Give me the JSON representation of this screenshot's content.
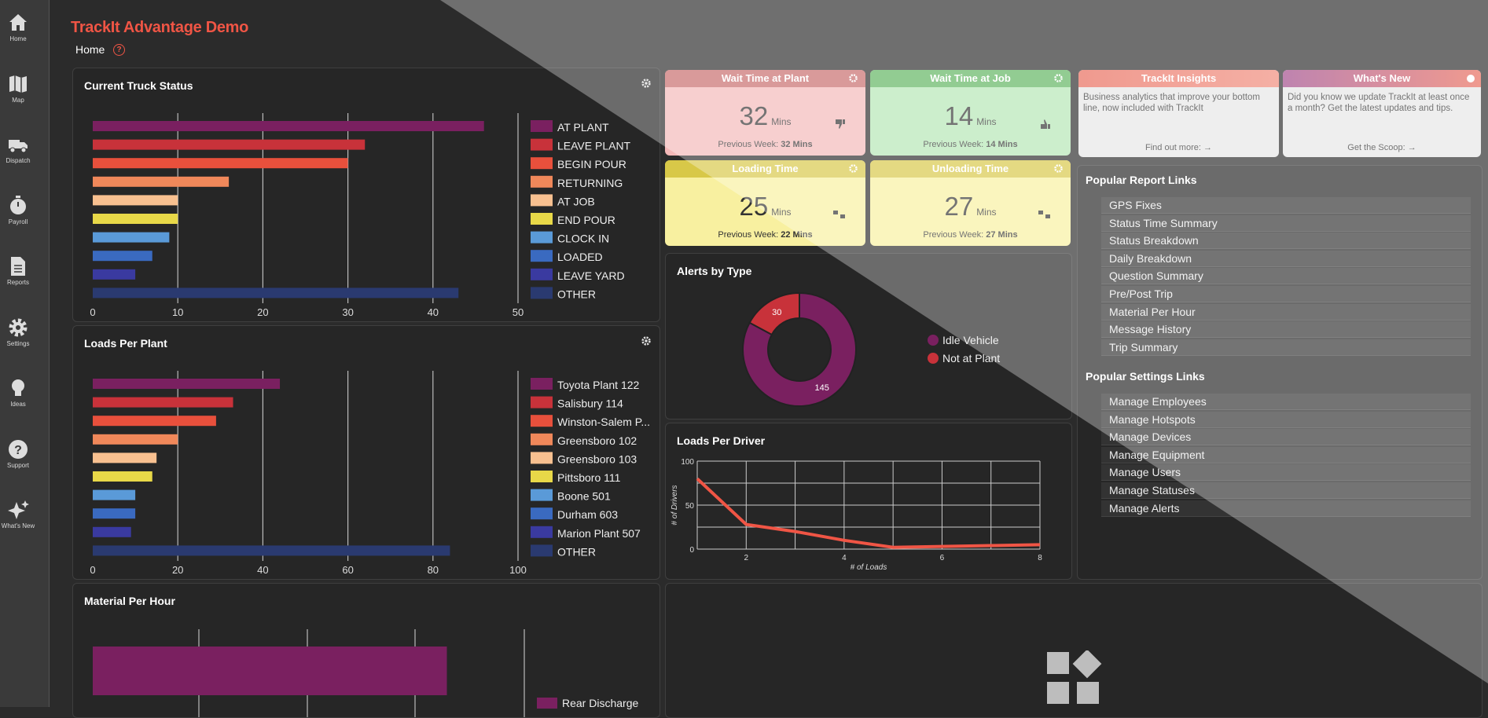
{
  "app": {
    "title": "TrackIt Advantage Demo",
    "breadcrumb": "Home",
    "help_glyph": "?"
  },
  "sidebar": {
    "items": [
      {
        "label": "Home",
        "icon": "home-icon"
      },
      {
        "label": "Map",
        "icon": "map-icon"
      },
      {
        "label": "Dispatch",
        "icon": "truck-icon"
      },
      {
        "label": "Payroll",
        "icon": "stopwatch-icon"
      },
      {
        "label": "Reports",
        "icon": "document-icon"
      },
      {
        "label": "Settings",
        "icon": "gear-icon"
      },
      {
        "label": "Ideas",
        "icon": "lightbulb-icon"
      },
      {
        "label": "Support",
        "icon": "question-icon"
      },
      {
        "label": "What's New",
        "icon": "sparkle-icon"
      }
    ]
  },
  "panels": {
    "truck_status": {
      "title": "Current Truck Status"
    },
    "loads_per_plant": {
      "title": "Loads Per Plant"
    },
    "material_per_hour": {
      "title": "Material Per Hour"
    },
    "alerts_by_type": {
      "title": "Alerts by Type"
    },
    "loads_per_driver": {
      "title": "Loads Per Driver"
    }
  },
  "cards": {
    "wait_plant": {
      "title": "Wait Time at Plant",
      "value": "32",
      "unit": "Mins",
      "prev_label": "Previous Week:",
      "prev_value": "32 Mins"
    },
    "wait_job": {
      "title": "Wait Time at Job",
      "value": "14",
      "unit": "Mins",
      "prev_label": "Previous Week:",
      "prev_value": "14 Mins"
    },
    "loading": {
      "title": "Loading Time",
      "value": "25",
      "unit": "Mins",
      "prev_label": "Previous Week:",
      "prev_value": "22 Mins"
    },
    "unloading": {
      "title": "Unloading Time",
      "value": "27",
      "unit": "Mins",
      "prev_label": "Previous Week:",
      "prev_value": "27 Mins"
    },
    "insights": {
      "title": "TrackIt Insights",
      "text": "Business analytics that improve your bottom line, now included with TrackIt",
      "link": "Find out more:"
    },
    "whats_new": {
      "title": "What's New",
      "text": "Did you know we update TrackIt at least once a month? Get the latest updates and tips.",
      "link": "Get the Scoop:"
    }
  },
  "links": {
    "report_title": "Popular Report Links",
    "reports": [
      "GPS Fixes",
      "Status Time Summary",
      "Status Breakdown",
      "Daily Breakdown",
      "Question Summary",
      "Pre/Post Trip",
      "Material Per Hour",
      "Message History",
      "Trip Summary"
    ],
    "settings_title": "Popular Settings Links",
    "settings": [
      "Manage Employees",
      "Manage Hotspots",
      "Manage Devices",
      "Manage Equipment",
      "Manage Users",
      "Manage Statuses",
      "Manage Alerts"
    ]
  },
  "colors": {
    "accent": "#f05545",
    "series": [
      "#7a2060",
      "#c8323a",
      "#e8503c",
      "#f0885a",
      "#f8c090",
      "#e8d848",
      "#5a9ad8",
      "#3a6ac0",
      "#3a3aa0",
      "#2a3a70"
    ]
  },
  "chart_data": [
    {
      "type": "bar",
      "orientation": "horizontal",
      "title": "Current Truck Status",
      "categories": [
        "AT PLANT",
        "LEAVE PLANT",
        "BEGIN POUR",
        "RETURNING",
        "AT JOB",
        "END POUR",
        "CLOCK IN",
        "LOADED",
        "LEAVE YARD",
        "OTHER"
      ],
      "values": [
        46,
        32,
        30,
        16,
        10,
        10,
        9,
        7,
        5,
        43
      ],
      "xlim": [
        0,
        50
      ],
      "ticks": [
        0,
        10,
        20,
        30,
        40,
        50
      ],
      "legend": "right",
      "grid": true
    },
    {
      "type": "bar",
      "orientation": "horizontal",
      "title": "Loads Per Plant",
      "categories": [
        "Toyota Plant 122",
        "Salisbury 114",
        "Winston-Salem P...",
        "Greensboro 102",
        "Greensboro 103",
        "Pittsboro 111",
        "Boone 501",
        "Durham 603",
        "Marion Plant 507",
        "OTHER"
      ],
      "values": [
        44,
        33,
        29,
        20,
        15,
        14,
        10,
        10,
        9,
        84
      ],
      "xlim": [
        0,
        100
      ],
      "ticks": [
        0,
        20,
        40,
        60,
        80,
        100
      ],
      "legend": "right",
      "grid": true
    },
    {
      "type": "pie",
      "donut": true,
      "title": "Alerts by Type",
      "labels": [
        "Idle Vehicle",
        "Not at Plant"
      ],
      "values": [
        145,
        30
      ],
      "colors": [
        "#7a2060",
        "#c8323a"
      ],
      "legend": "right"
    },
    {
      "type": "line",
      "title": "Loads Per Driver",
      "xlabel": "# of Loads",
      "ylabel": "# of Drivers",
      "x": [
        1,
        2,
        3,
        4,
        5,
        6,
        7,
        8
      ],
      "y": [
        80,
        28,
        20,
        10,
        2,
        3,
        4,
        5
      ],
      "xlim": [
        1,
        8
      ],
      "ylim": [
        0,
        100
      ],
      "xticks": [
        2,
        4,
        6,
        8
      ],
      "yticks": [
        0,
        50,
        100
      ],
      "grid": true,
      "color": "#f05545"
    },
    {
      "type": "bar",
      "orientation": "horizontal",
      "title": "Material Per Hour",
      "categories": [
        "Rear Discharge"
      ],
      "values": [
        85
      ],
      "legend": "right",
      "grid": true
    }
  ]
}
